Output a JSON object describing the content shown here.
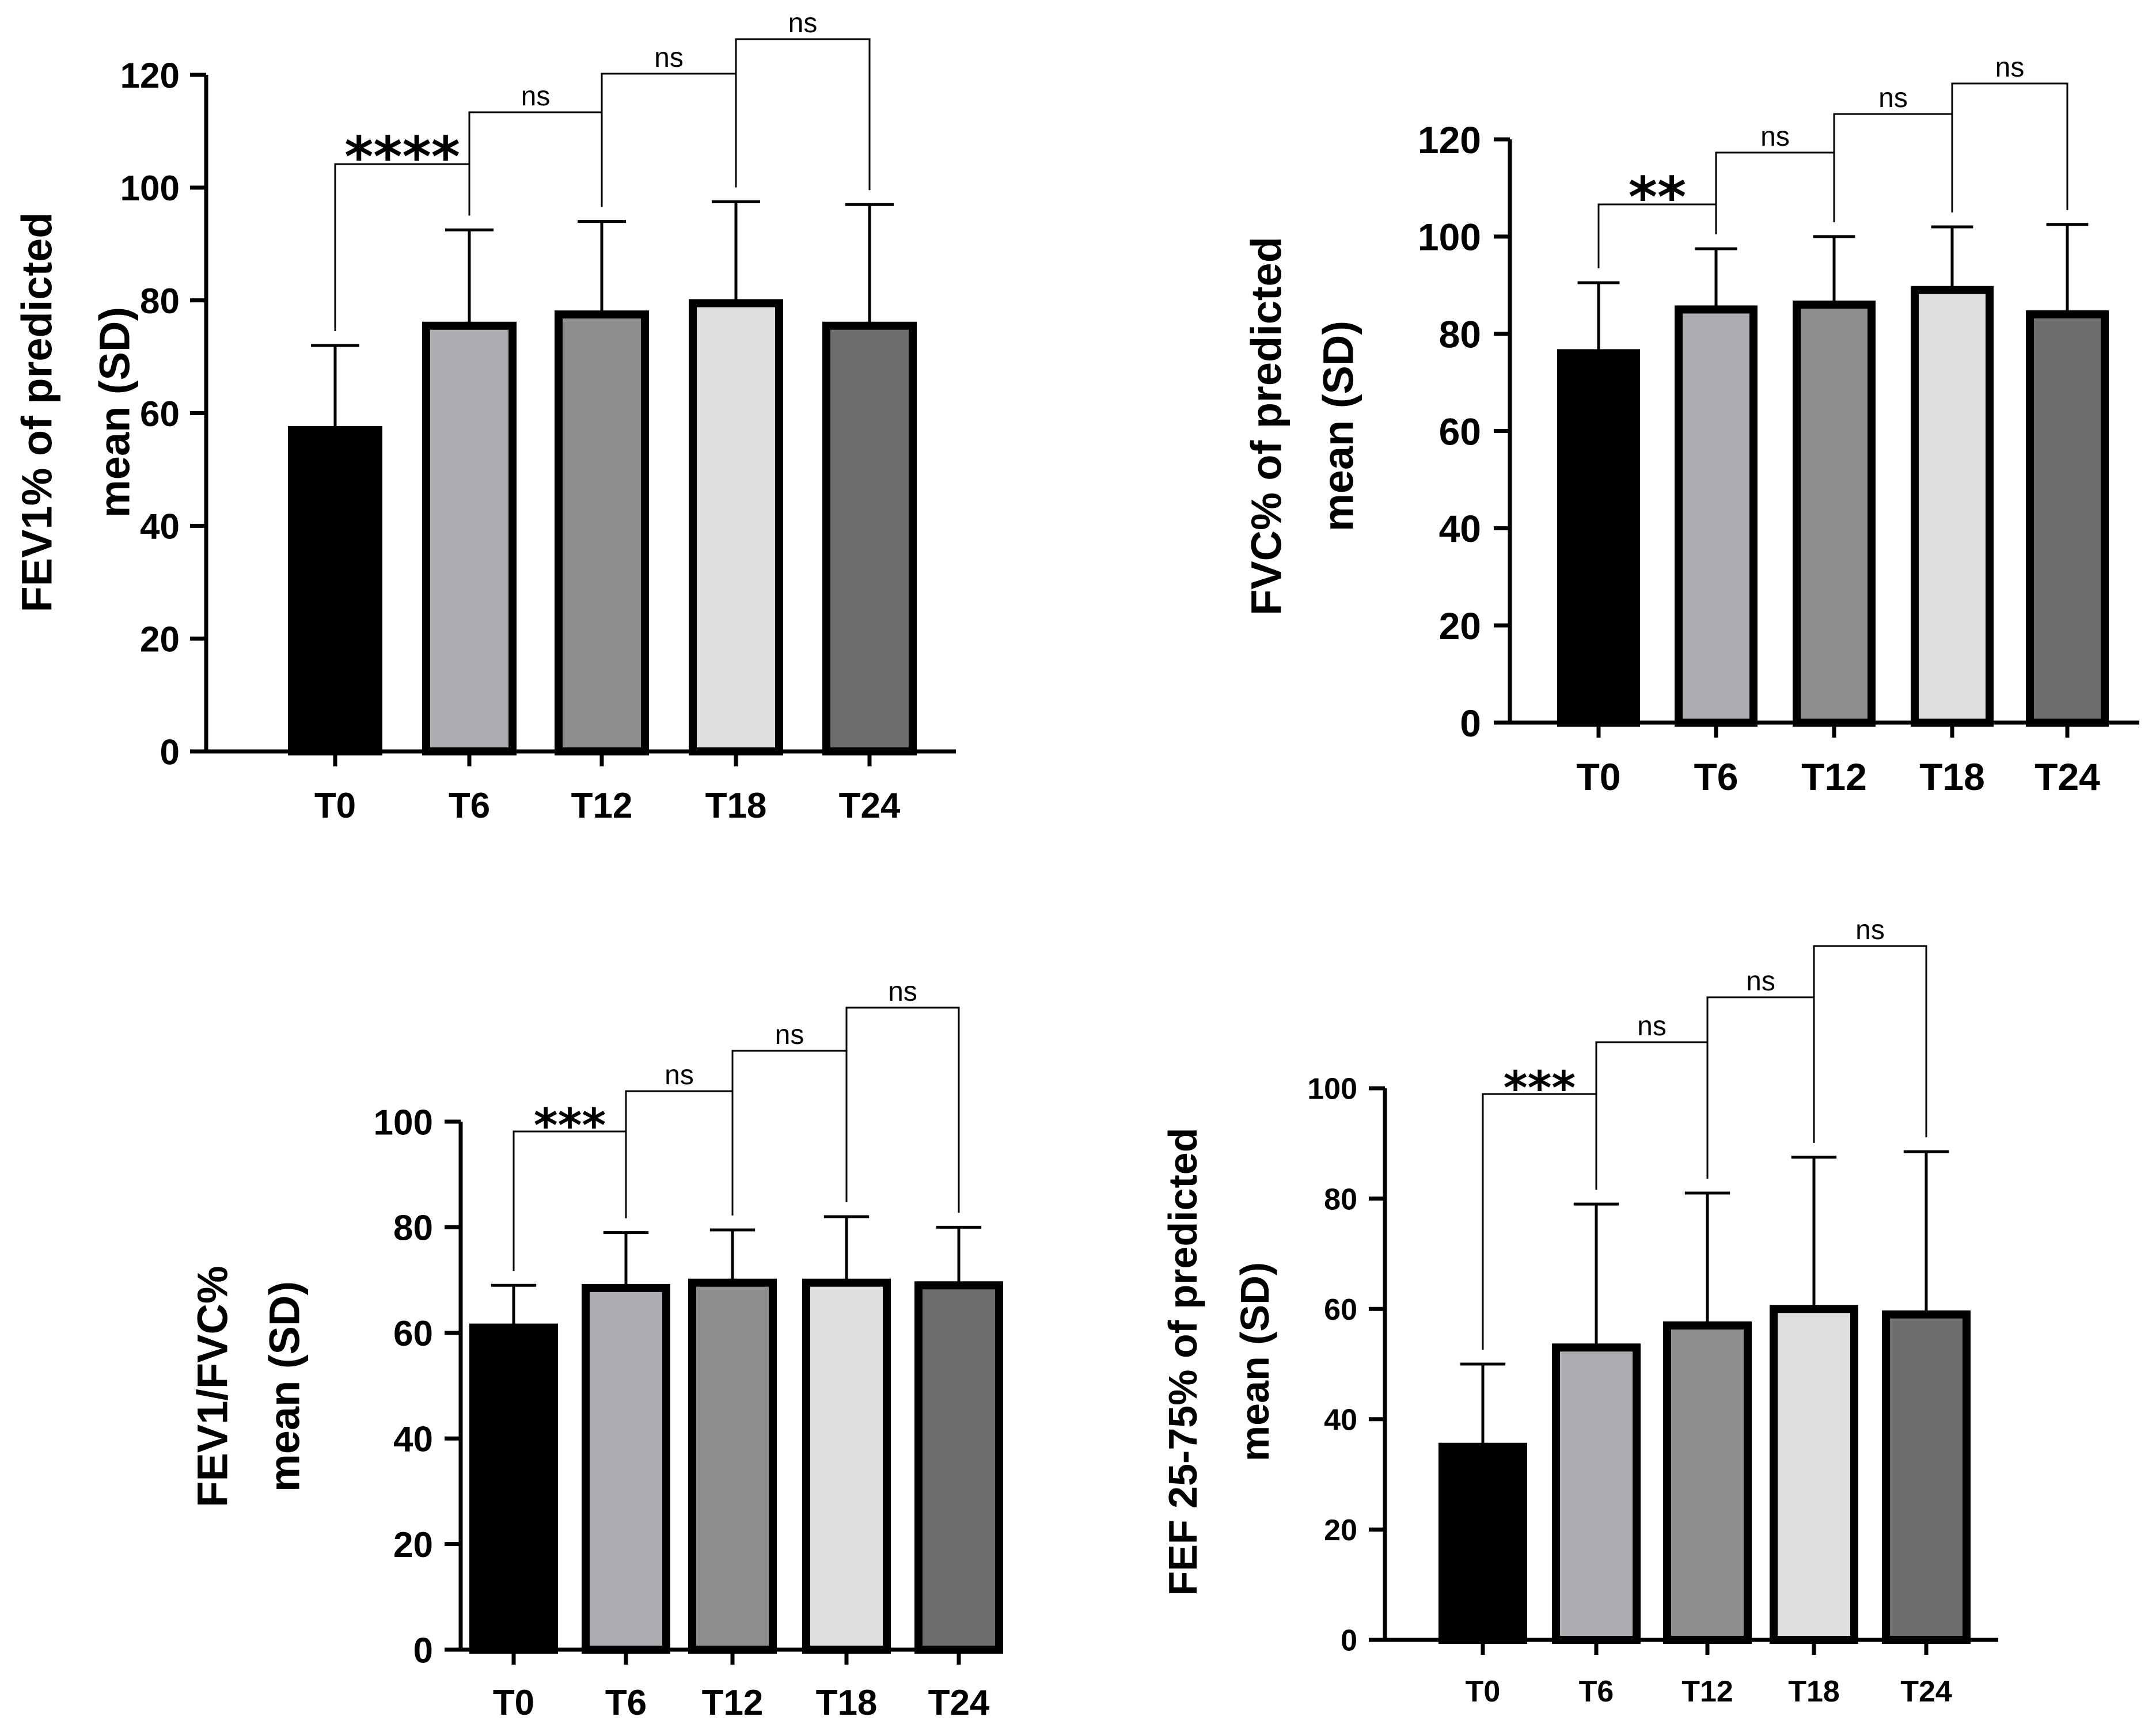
{
  "colors": {
    "T0": "#000000",
    "T6": "#adadb2",
    "T12": "#8e8e8e",
    "T18": "#dedede",
    "T24": "#6e6e6e",
    "stroke": "#000000"
  },
  "chart_data": [
    {
      "type": "bar",
      "categories": [
        "T0",
        "T6",
        "T12",
        "T18",
        "T24"
      ],
      "values": [
        57,
        75.5,
        77.5,
        79.5,
        75.5
      ],
      "errors": [
        15,
        17,
        16.5,
        18,
        21.5
      ],
      "ylabel_lines": [
        "FEV1% of predicted",
        "mean (SD)"
      ],
      "ylim": [
        0,
        120
      ],
      "yticks": [
        "0",
        "20",
        "40",
        "60",
        "80",
        "100",
        "120"
      ],
      "comparisons": [
        {
          "from": "T0",
          "to": "T6",
          "label": "****"
        },
        {
          "from": "T6",
          "to": "T12",
          "label": "ns"
        },
        {
          "from": "T12",
          "to": "T18",
          "label": "ns"
        },
        {
          "from": "T18",
          "to": "T24",
          "label": "ns"
        }
      ]
    },
    {
      "type": "bar",
      "categories": [
        "T0",
        "T6",
        "T12",
        "T18",
        "T24"
      ],
      "values": [
        76,
        85,
        86,
        89,
        84
      ],
      "errors": [
        14.5,
        12.5,
        14,
        13,
        18.5
      ],
      "ylabel_lines": [
        "FVC% of predicted",
        "mean (SD)"
      ],
      "ylim": [
        0,
        120
      ],
      "yticks": [
        "0",
        "20",
        "40",
        "60",
        "80",
        "100",
        "120"
      ],
      "comparisons": [
        {
          "from": "T0",
          "to": "T6",
          "label": "**"
        },
        {
          "from": "T6",
          "to": "T12",
          "label": "ns"
        },
        {
          "from": "T12",
          "to": "T18",
          "label": "ns"
        },
        {
          "from": "T18",
          "to": "T24",
          "label": "ns"
        }
      ]
    },
    {
      "type": "bar",
      "categories": [
        "T0",
        "T6",
        "T12",
        "T18",
        "T24"
      ],
      "values": [
        61,
        68.5,
        69.5,
        69.5,
        69
      ],
      "errors": [
        8,
        10.5,
        10,
        12.5,
        11
      ],
      "ylabel_lines": [
        "FEV1/FVC%",
        "mean (SD)"
      ],
      "ylim": [
        0,
        100
      ],
      "yticks": [
        "0",
        "20",
        "40",
        "60",
        "80",
        "100"
      ],
      "comparisons": [
        {
          "from": "T0",
          "to": "T6",
          "label": "***"
        },
        {
          "from": "T6",
          "to": "T12",
          "label": "ns"
        },
        {
          "from": "T12",
          "to": "T18",
          "label": "ns"
        },
        {
          "from": "T18",
          "to": "T24",
          "label": "ns"
        }
      ]
    },
    {
      "type": "bar",
      "categories": [
        "T0",
        "T6",
        "T12",
        "T18",
        "T24"
      ],
      "values": [
        35,
        53,
        57,
        60,
        59
      ],
      "errors": [
        15,
        26,
        24,
        27.5,
        29.5
      ],
      "ylabel_lines": [
        "FEF 25-75% of predicted",
        "mean (SD)"
      ],
      "ylim": [
        0,
        100
      ],
      "yticks": [
        "0",
        "20",
        "40",
        "60",
        "80",
        "100"
      ],
      "comparisons": [
        {
          "from": "T0",
          "to": "T6",
          "label": "***"
        },
        {
          "from": "T6",
          "to": "T12",
          "label": "ns"
        },
        {
          "from": "T12",
          "to": "T18",
          "label": "ns"
        },
        {
          "from": "T18",
          "to": "T24",
          "label": "ns"
        }
      ]
    }
  ]
}
